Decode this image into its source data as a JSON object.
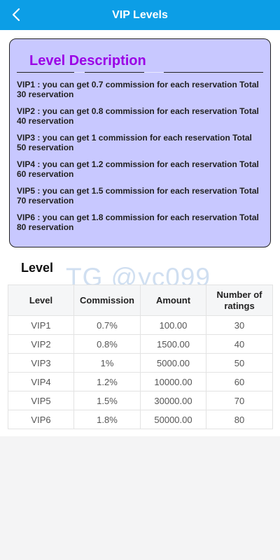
{
  "header": {
    "title": "VIP Levels"
  },
  "description": {
    "title": "Level Description",
    "items": [
      "VIP1 : you can get 0.7 commission for each reservation Total 30 reservation",
      "VIP2 : you can get 0.8 commission for each reservation Total 40 reservation",
      "VIP3 : you can get 1 commission for each reservation Total 50 reservation",
      "VIP4 : you can get 1.2 commission for each reservation Total 60 reservation",
      "VIP5 : you can get 1.5 commission for each reservation Total 70 reservation",
      "VIP6 : you can get 1.8 commission for each reservation Total 80 reservation"
    ]
  },
  "level_section": {
    "title": "Level",
    "watermark": "TG @yc099"
  },
  "table": {
    "headers": [
      "Level",
      "Commission",
      "Amount",
      "Number of ratings"
    ],
    "rows": [
      [
        "VIP1",
        "0.7%",
        "100.00",
        "30"
      ],
      [
        "VIP2",
        "0.8%",
        "1500.00",
        "40"
      ],
      [
        "VIP3",
        "1%",
        "5000.00",
        "50"
      ],
      [
        "VIP4",
        "1.2%",
        "10000.00",
        "60"
      ],
      [
        "VIP5",
        "1.5%",
        "30000.00",
        "70"
      ],
      [
        "VIP6",
        "1.8%",
        "50000.00",
        "80"
      ]
    ]
  },
  "colors": {
    "header_bg": "#0c9ee6",
    "desc_bg": "#c8c8ff",
    "desc_title": "#9b00e6"
  }
}
